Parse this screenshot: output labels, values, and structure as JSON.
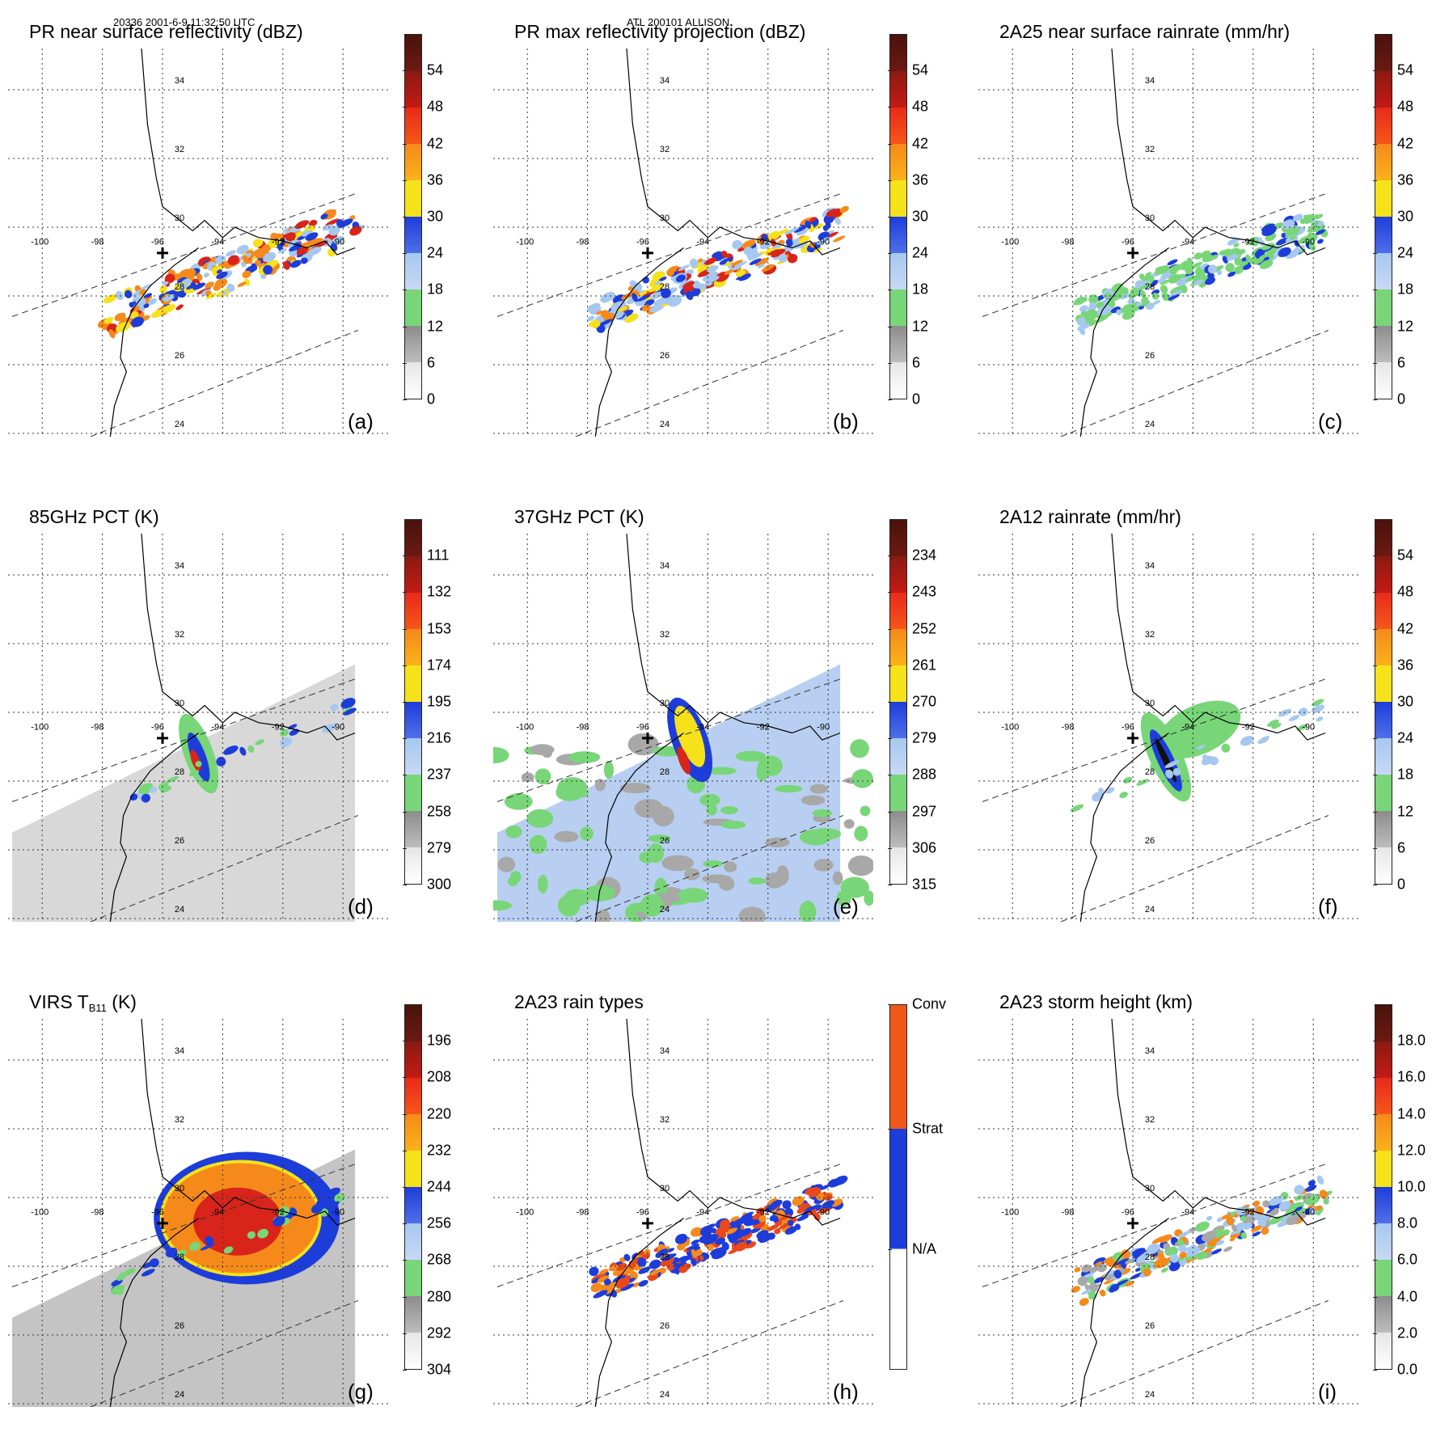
{
  "header": {
    "orbit_time": "20336 2001-6-9 11:32:50 UTC",
    "storm": "ATL 200101 ALLISON"
  },
  "colors": {
    "green": "#78d678",
    "lightblue": "#a6c8f0",
    "blue": "#1d3ddb",
    "yellow": "#f5e21a",
    "orange": "#f58a1a",
    "red": "#d8241a",
    "darkred": "#6b1a12",
    "gray": "#a8a8a8"
  },
  "map": {
    "lon_labels": [
      "-100",
      "-98",
      "-96",
      "-94",
      "-92",
      "-90"
    ],
    "lat_labels": [
      "34",
      "32",
      "30",
      "28",
      "26",
      "24"
    ],
    "center_marker": "plus-icon"
  },
  "panels": [
    {
      "id": "a",
      "title": "PR near surface reflectivity (dBZ)",
      "label": "(a)",
      "ticks": [
        "0",
        "6",
        "12",
        "18",
        "24",
        "30",
        "36",
        "42",
        "48",
        "54"
      ],
      "field": "reflectivity"
    },
    {
      "id": "b",
      "title": "PR max reflectivity projection (dBZ)",
      "label": "(b)",
      "ticks": [
        "0",
        "6",
        "12",
        "18",
        "24",
        "30",
        "36",
        "42",
        "48",
        "54"
      ],
      "field": "maxrefl"
    },
    {
      "id": "c",
      "title": "2A25 near surface rainrate (mm/hr)",
      "label": "(c)",
      "ticks": [
        "0",
        "6",
        "12",
        "18",
        "24",
        "30",
        "36",
        "42",
        "48",
        "54"
      ],
      "field": "rainrate"
    },
    {
      "id": "d",
      "title": "85GHz PCT (K)",
      "label": "(d)",
      "ticks": [
        "300",
        "279",
        "258",
        "237",
        "216",
        "195",
        "174",
        "153",
        "132",
        "111"
      ],
      "field": "pct85"
    },
    {
      "id": "e",
      "title": "37GHz PCT (K)",
      "label": "(e)",
      "ticks": [
        "315",
        "306",
        "297",
        "288",
        "279",
        "270",
        "261",
        "252",
        "243",
        "234"
      ],
      "field": "pct37"
    },
    {
      "id": "f",
      "title": "2A12 rainrate (mm/hr)",
      "label": "(f)",
      "ticks": [
        "0",
        "6",
        "12",
        "18",
        "24",
        "30",
        "36",
        "42",
        "48",
        "54"
      ],
      "field": "rain2a12"
    },
    {
      "id": "g",
      "title_main": "VIRS T",
      "title_sub": "B11",
      "title_unit": " (K)",
      "label": "(g)",
      "ticks": [
        "304",
        "292",
        "280",
        "268",
        "256",
        "244",
        "232",
        "220",
        "208",
        "196"
      ],
      "field": "virs"
    },
    {
      "id": "h",
      "title": "2A23 rain types",
      "label": "(h)",
      "ticks": [
        "N/A",
        "Strat",
        "Conv"
      ],
      "field": "raintype"
    },
    {
      "id": "i",
      "title": "2A23 storm height (km)",
      "label": "(i)",
      "ticks": [
        "0.0",
        "2.0",
        "4.0",
        "6.0",
        "8.0",
        "10.0",
        "12.0",
        "14.0",
        "16.0",
        "18.0"
      ],
      "field": "height"
    }
  ]
}
